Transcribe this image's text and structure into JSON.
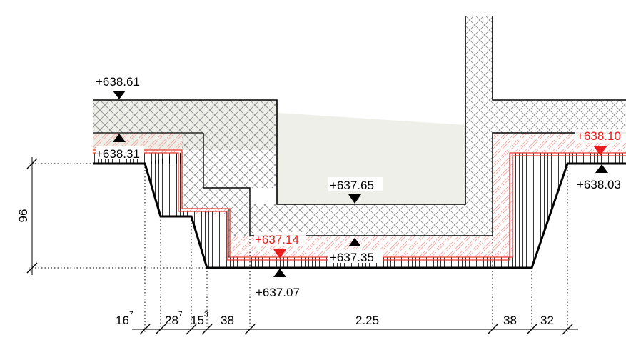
{
  "colors": {
    "outline": "#000000",
    "insulation_red": "#e8392f",
    "hatch_red": "#f2b7b1",
    "concrete_fill": "#eeeee9",
    "crosshatch": "#8f8f8f",
    "accent_red": "#e81e1e"
  },
  "elevations": {
    "top_left": "+638.61",
    "left_upper": "+638.31",
    "slab_mid": "+637.65",
    "red_left": "+637.14",
    "pit_level": "+637.35",
    "bottom": "+637.07",
    "red_right": "+638.10",
    "right": "+638.03"
  },
  "vertical_dimension": "96",
  "horizontal_dimensions": [
    {
      "base": "16",
      "sup": "7"
    },
    {
      "base": "28",
      "sup": "7"
    },
    {
      "base": "15",
      "sup": "3"
    },
    {
      "base": "38",
      "sup": ""
    },
    {
      "base": "2.25",
      "sup": ""
    },
    {
      "base": "38",
      "sup": ""
    },
    {
      "base": "32",
      "sup": ""
    }
  ]
}
